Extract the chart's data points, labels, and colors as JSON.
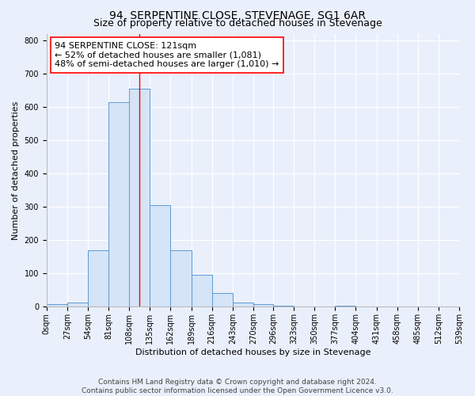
{
  "title": "94, SERPENTINE CLOSE, STEVENAGE, SG1 6AR",
  "subtitle": "Size of property relative to detached houses in Stevenage",
  "xlabel": "Distribution of detached houses by size in Stevenage",
  "ylabel": "Number of detached properties",
  "bin_edges": [
    0,
    27,
    54,
    81,
    108,
    135,
    162,
    189,
    216,
    243,
    270,
    296,
    323,
    350,
    377,
    404,
    431,
    458,
    485,
    512,
    539
  ],
  "bar_heights": [
    8,
    12,
    170,
    615,
    655,
    305,
    170,
    97,
    42,
    14,
    8,
    4,
    0,
    0,
    3,
    0,
    0,
    0,
    0,
    0
  ],
  "bar_face_color": "#d6e4f7",
  "bar_edge_color": "#5b9bd5",
  "vline_x": 121,
  "vline_color": "red",
  "annotation_line1": "94 SERPENTINE CLOSE: 121sqm",
  "annotation_line2": "← 52% of detached houses are smaller (1,081)",
  "annotation_line3": "48% of semi-detached houses are larger (1,010) →",
  "annotation_box_color": "white",
  "annotation_box_edge_color": "red",
  "ylim": [
    0,
    820
  ],
  "yticks": [
    0,
    100,
    200,
    300,
    400,
    500,
    600,
    700,
    800
  ],
  "tick_labels": [
    "0sqm",
    "27sqm",
    "54sqm",
    "81sqm",
    "108sqm",
    "135sqm",
    "162sqm",
    "189sqm",
    "216sqm",
    "243sqm",
    "270sqm",
    "296sqm",
    "323sqm",
    "350sqm",
    "377sqm",
    "404sqm",
    "431sqm",
    "458sqm",
    "485sqm",
    "512sqm",
    "539sqm"
  ],
  "footer_text": "Contains HM Land Registry data © Crown copyright and database right 2024.\nContains public sector information licensed under the Open Government Licence v3.0.",
  "background_color": "#eaf0fb",
  "grid_color": "white",
  "title_fontsize": 10,
  "subtitle_fontsize": 9,
  "axis_label_fontsize": 8,
  "tick_fontsize": 7,
  "annotation_fontsize": 8,
  "footer_fontsize": 6.5
}
